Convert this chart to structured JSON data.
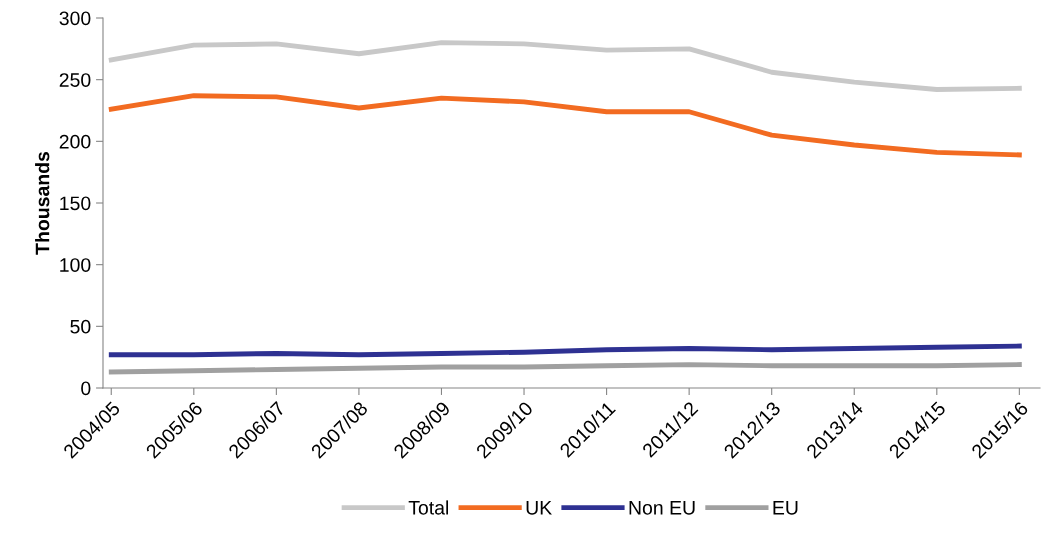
{
  "chart_data": {
    "type": "line",
    "ylabel": "Thousands",
    "categories": [
      "2004/05",
      "2005/06",
      "2006/07",
      "2007/08",
      "2008/09",
      "2009/10",
      "2010/11",
      "2011/12",
      "2012/13",
      "2013/14",
      "2014/15",
      "2015/16"
    ],
    "series": [
      {
        "name": "Total",
        "color": "#c8c8c8",
        "values": [
          266,
          278,
          279,
          271,
          280,
          279,
          274,
          275,
          256,
          248,
          242,
          243
        ]
      },
      {
        "name": "UK",
        "color": "#f26b21",
        "values": [
          226,
          237,
          236,
          227,
          235,
          232,
          224,
          224,
          205,
          197,
          191,
          189
        ]
      },
      {
        "name": "Non EU",
        "color": "#2e3192",
        "values": [
          27,
          27,
          28,
          27,
          28,
          29,
          31,
          32,
          31,
          32,
          33,
          34
        ]
      },
      {
        "name": "EU",
        "color": "#a0a0a0",
        "values": [
          13,
          14,
          15,
          16,
          17,
          17,
          18,
          19,
          18,
          18,
          18,
          19
        ]
      }
    ],
    "ylim": [
      0,
      300
    ],
    "yticks": [
      0,
      50,
      100,
      150,
      200,
      250,
      300
    ],
    "grid": false,
    "legend": "bottom",
    "marker": "none",
    "line_style": "solid"
  }
}
